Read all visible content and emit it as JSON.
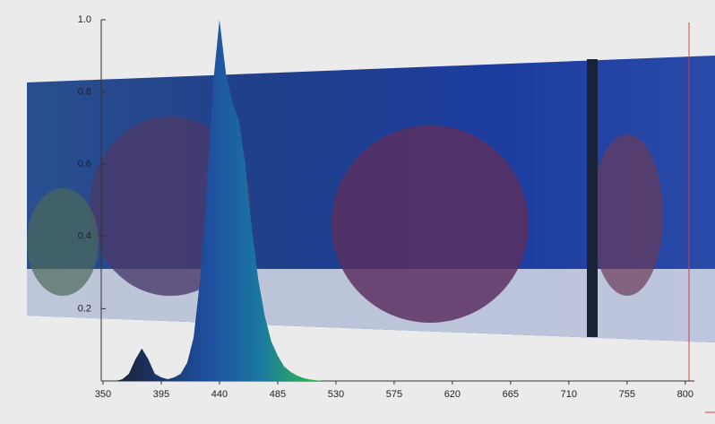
{
  "chart_data": {
    "type": "area",
    "x": [
      360,
      365,
      370,
      375,
      380,
      385,
      390,
      395,
      400,
      405,
      410,
      415,
      420,
      425,
      430,
      435,
      440,
      445,
      450,
      455,
      460,
      465,
      470,
      475,
      480,
      485,
      490,
      495,
      500,
      505,
      510,
      515,
      520
    ],
    "values": [
      0,
      0.005,
      0.02,
      0.06,
      0.09,
      0.06,
      0.02,
      0.01,
      0.005,
      0.01,
      0.02,
      0.05,
      0.12,
      0.28,
      0.52,
      0.82,
      1.0,
      0.85,
      0.77,
      0.72,
      0.6,
      0.42,
      0.28,
      0.18,
      0.11,
      0.07,
      0.04,
      0.025,
      0.015,
      0.008,
      0.004,
      0.002,
      0
    ],
    "xlim": [
      350,
      807
    ],
    "ylim": [
      0,
      1
    ],
    "xticks": [
      350,
      395,
      440,
      485,
      530,
      575,
      620,
      665,
      710,
      755,
      800
    ],
    "yticks": [
      0.2,
      0.4,
      0.6,
      0.8,
      {
        "value": 1,
        "label": "1.0"
      }
    ]
  }
}
